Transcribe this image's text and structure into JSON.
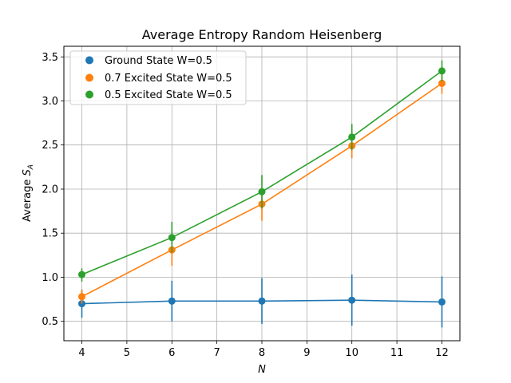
{
  "chart_data": {
    "type": "line",
    "title": "Average Entropy Random Heisenberg",
    "xlabel_italic": "N",
    "ylabel_prefix": "Average ",
    "ylabel_symbol": "S",
    "ylabel_subscript": "A",
    "xlim": [
      3.6,
      12.4
    ],
    "ylim": [
      0.28,
      3.62
    ],
    "xticks": [
      4,
      5,
      6,
      7,
      8,
      9,
      10,
      11,
      12
    ],
    "yticks": [
      0.5,
      1.0,
      1.5,
      2.0,
      2.5,
      3.0,
      3.5
    ],
    "ytick_labels": [
      "0.5",
      "1.0",
      "1.5",
      "2.0",
      "2.5",
      "3.0",
      "3.5"
    ],
    "grid": true,
    "legend_position": "upper-left",
    "series": [
      {
        "name": "Ground State W=0.5",
        "color": "#1f77b4",
        "x": [
          4,
          6,
          8,
          10,
          12
        ],
        "y": [
          0.7,
          0.73,
          0.73,
          0.74,
          0.72
        ],
        "yerr_low": [
          0.54,
          0.5,
          0.47,
          0.45,
          0.43
        ],
        "yerr_high": [
          0.86,
          0.96,
          0.99,
          1.03,
          1.01
        ]
      },
      {
        "name": "0.7 Excited State W=0.5",
        "color": "#ff7f0e",
        "x": [
          4,
          6,
          8,
          10,
          12
        ],
        "y": [
          0.78,
          1.31,
          1.83,
          2.49,
          3.2
        ],
        "yerr_low": [
          0.7,
          1.13,
          1.64,
          2.35,
          3.08
        ],
        "yerr_high": [
          0.86,
          1.46,
          2.0,
          2.63,
          3.32
        ]
      },
      {
        "name": "0.5 Excited State W=0.5",
        "color": "#2ca02c",
        "x": [
          4,
          6,
          8,
          10,
          12
        ],
        "y": [
          1.03,
          1.45,
          1.97,
          2.59,
          3.34
        ],
        "yerr_low": [
          0.95,
          1.28,
          1.78,
          2.44,
          3.22
        ],
        "yerr_high": [
          1.1,
          1.63,
          2.16,
          2.74,
          3.46
        ]
      }
    ]
  }
}
